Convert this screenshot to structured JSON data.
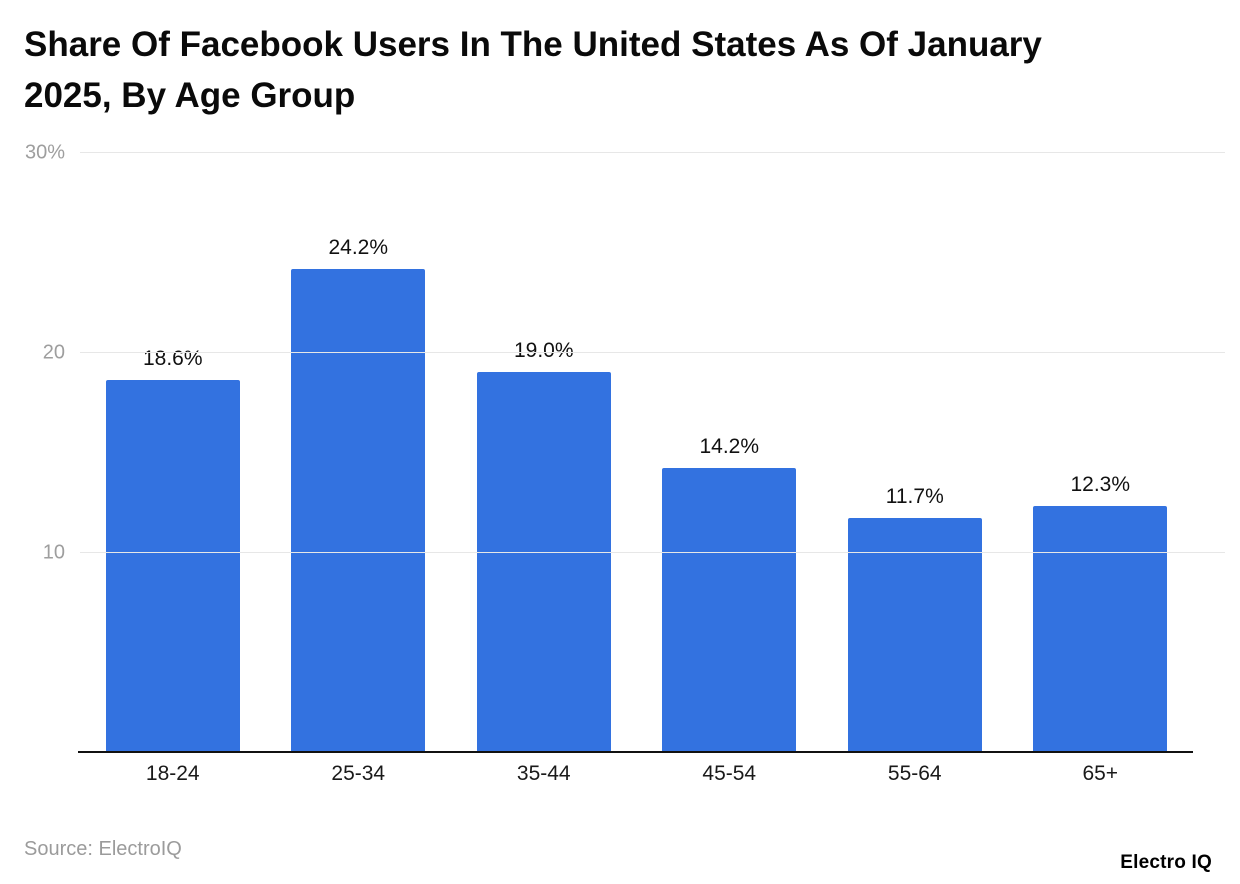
{
  "title": "Share Of Facebook Users In The United States As Of January 2025, By Age Group",
  "source": "Source: ElectroIQ",
  "brand": "Electro IQ",
  "colors": {
    "bar": "#3372e0",
    "gridline": "#e7e7e7",
    "axis": "#111111",
    "tick_text": "#9e9e9e"
  },
  "chart_data": {
    "type": "bar",
    "title": "Share Of Facebook Users In The United States As Of January 2025, By Age Group",
    "categories": [
      "18-24",
      "25-34",
      "35-44",
      "45-54",
      "55-64",
      "65+"
    ],
    "values": [
      18.6,
      24.2,
      19.0,
      14.2,
      11.7,
      12.3
    ],
    "value_labels": [
      "18.6%",
      "24.2%",
      "19.0%",
      "14.2%",
      "11.7%",
      "12.3%"
    ],
    "xlabel": "",
    "ylabel": "",
    "ylim": [
      0,
      30
    ],
    "yticks": [
      {
        "value": 10,
        "label": "10"
      },
      {
        "value": 20,
        "label": "20"
      },
      {
        "value": 30,
        "label": "30%"
      }
    ],
    "grid": true,
    "legend": false
  }
}
